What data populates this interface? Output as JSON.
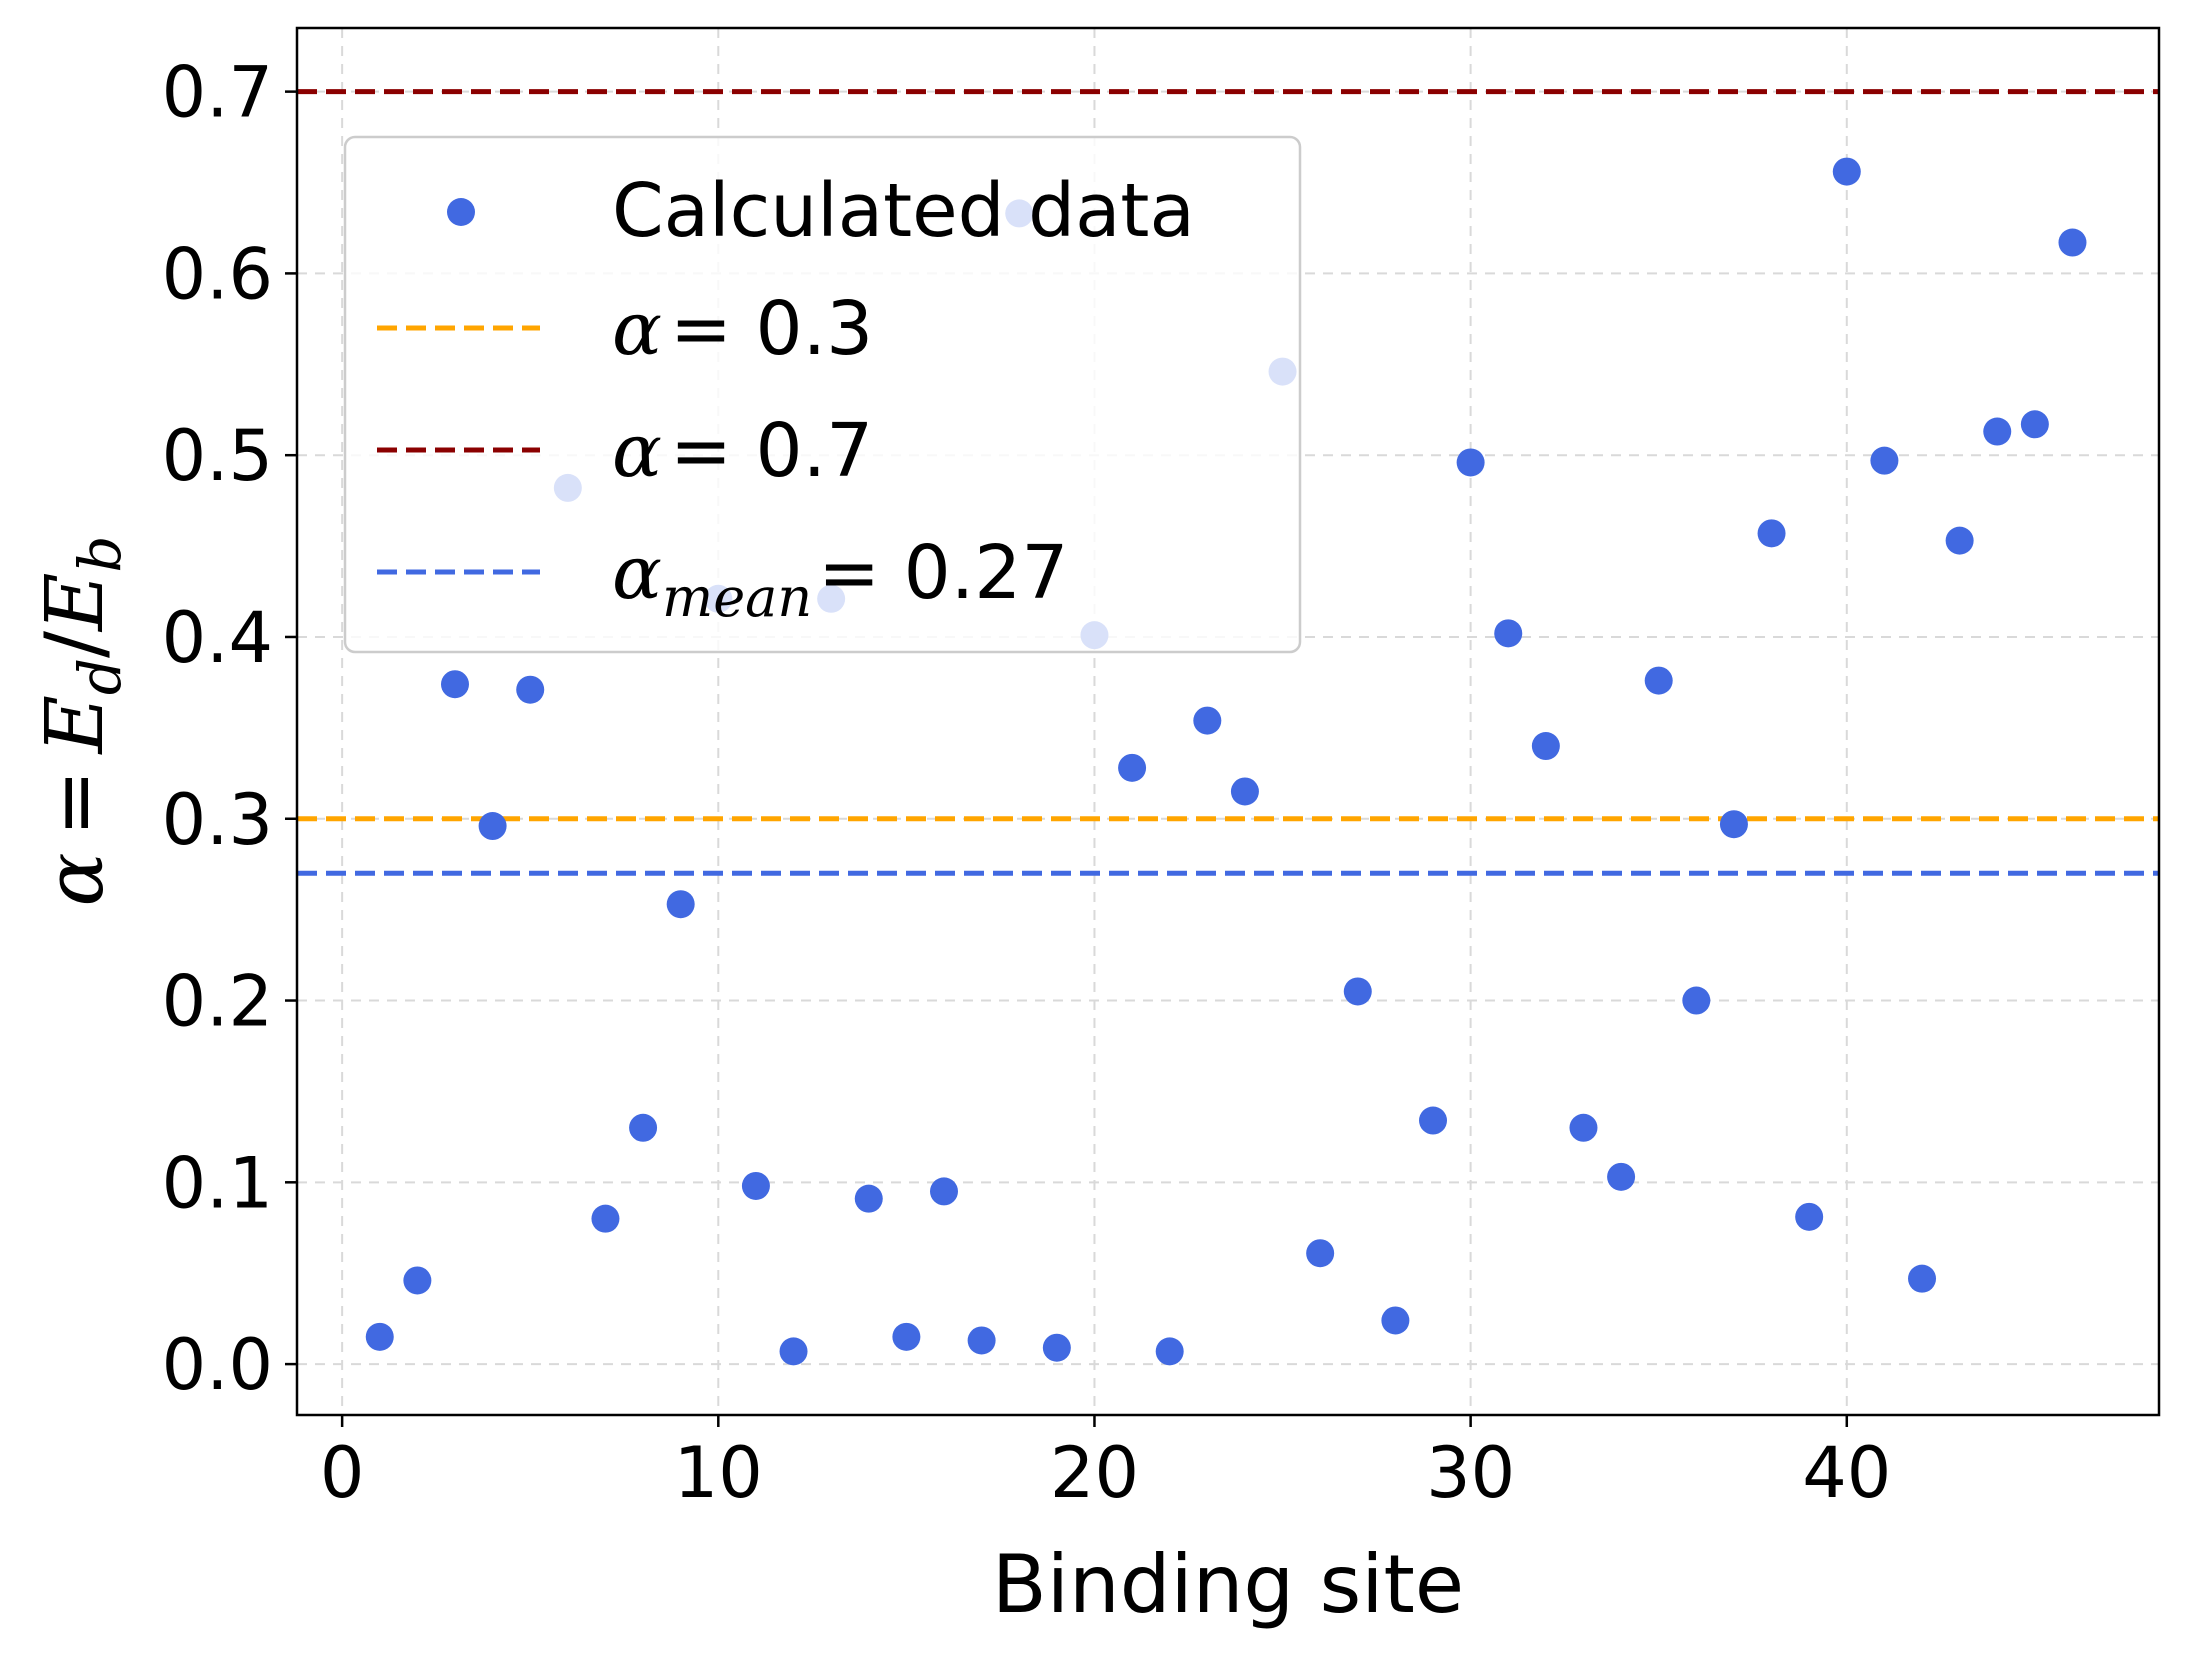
{
  "chart_data": {
    "type": "scatter",
    "xlabel": "Binding site",
    "ylabel_parts": {
      "alpha": "α",
      "eq": "=",
      "E": "E",
      "sub_d": "d",
      "slash": "/",
      "sub_b": "b"
    },
    "xlim": [
      -1.2,
      48.3
    ],
    "ylim": [
      -0.028,
      0.735
    ],
    "xticks": [
      0,
      10,
      20,
      30,
      40
    ],
    "xtick_labels": [
      "0",
      "10",
      "20",
      "30",
      "40"
    ],
    "yticks": [
      0.0,
      0.1,
      0.2,
      0.3,
      0.4,
      0.5,
      0.6,
      0.7
    ],
    "ytick_labels": [
      "0.0",
      "0.1",
      "0.2",
      "0.3",
      "0.4",
      "0.5",
      "0.6",
      "0.7"
    ],
    "grid": true,
    "legend_position": "upper-left",
    "series": [
      {
        "name": "Calculated data",
        "color": "#4169e1",
        "x": [
          1,
          2,
          3,
          4,
          5,
          6,
          7,
          8,
          9,
          10,
          11,
          12,
          13,
          14,
          15,
          16,
          17,
          18,
          19,
          20,
          21,
          22,
          23,
          24,
          25,
          26,
          27,
          28,
          29,
          30,
          31,
          32,
          33,
          34,
          35,
          36,
          37,
          38,
          39,
          40,
          41,
          42,
          43,
          44,
          45,
          46
        ],
        "y": [
          0.015,
          0.046,
          0.374,
          0.296,
          0.371,
          0.482,
          0.08,
          0.13,
          0.253,
          0.421,
          0.098,
          0.007,
          0.421,
          0.091,
          0.015,
          0.095,
          0.013,
          0.633,
          0.009,
          0.401,
          0.328,
          0.007,
          0.354,
          0.315,
          0.546,
          0.061,
          0.205,
          0.024,
          0.134,
          0.496,
          0.402,
          0.34,
          0.13,
          0.103,
          0.376,
          0.2,
          0.297,
          0.457,
          0.081,
          0.656,
          0.497,
          0.047,
          0.453,
          0.513,
          0.517,
          0.617
        ]
      }
    ],
    "hlines": [
      {
        "name": "alpha_03",
        "value": 0.3,
        "color": "#ffa500",
        "label_var": "α",
        "label_sub": "",
        "label_eq": "= 0.3"
      },
      {
        "name": "alpha_07",
        "value": 0.7,
        "color": "#8b0000",
        "label_var": "α",
        "label_sub": "",
        "label_eq": "= 0.7"
      },
      {
        "name": "alpha_mean",
        "value": 0.27,
        "color": "#4169e1",
        "label_var": "α",
        "label_sub": "mean",
        "label_eq": "= 0.27"
      }
    ]
  }
}
